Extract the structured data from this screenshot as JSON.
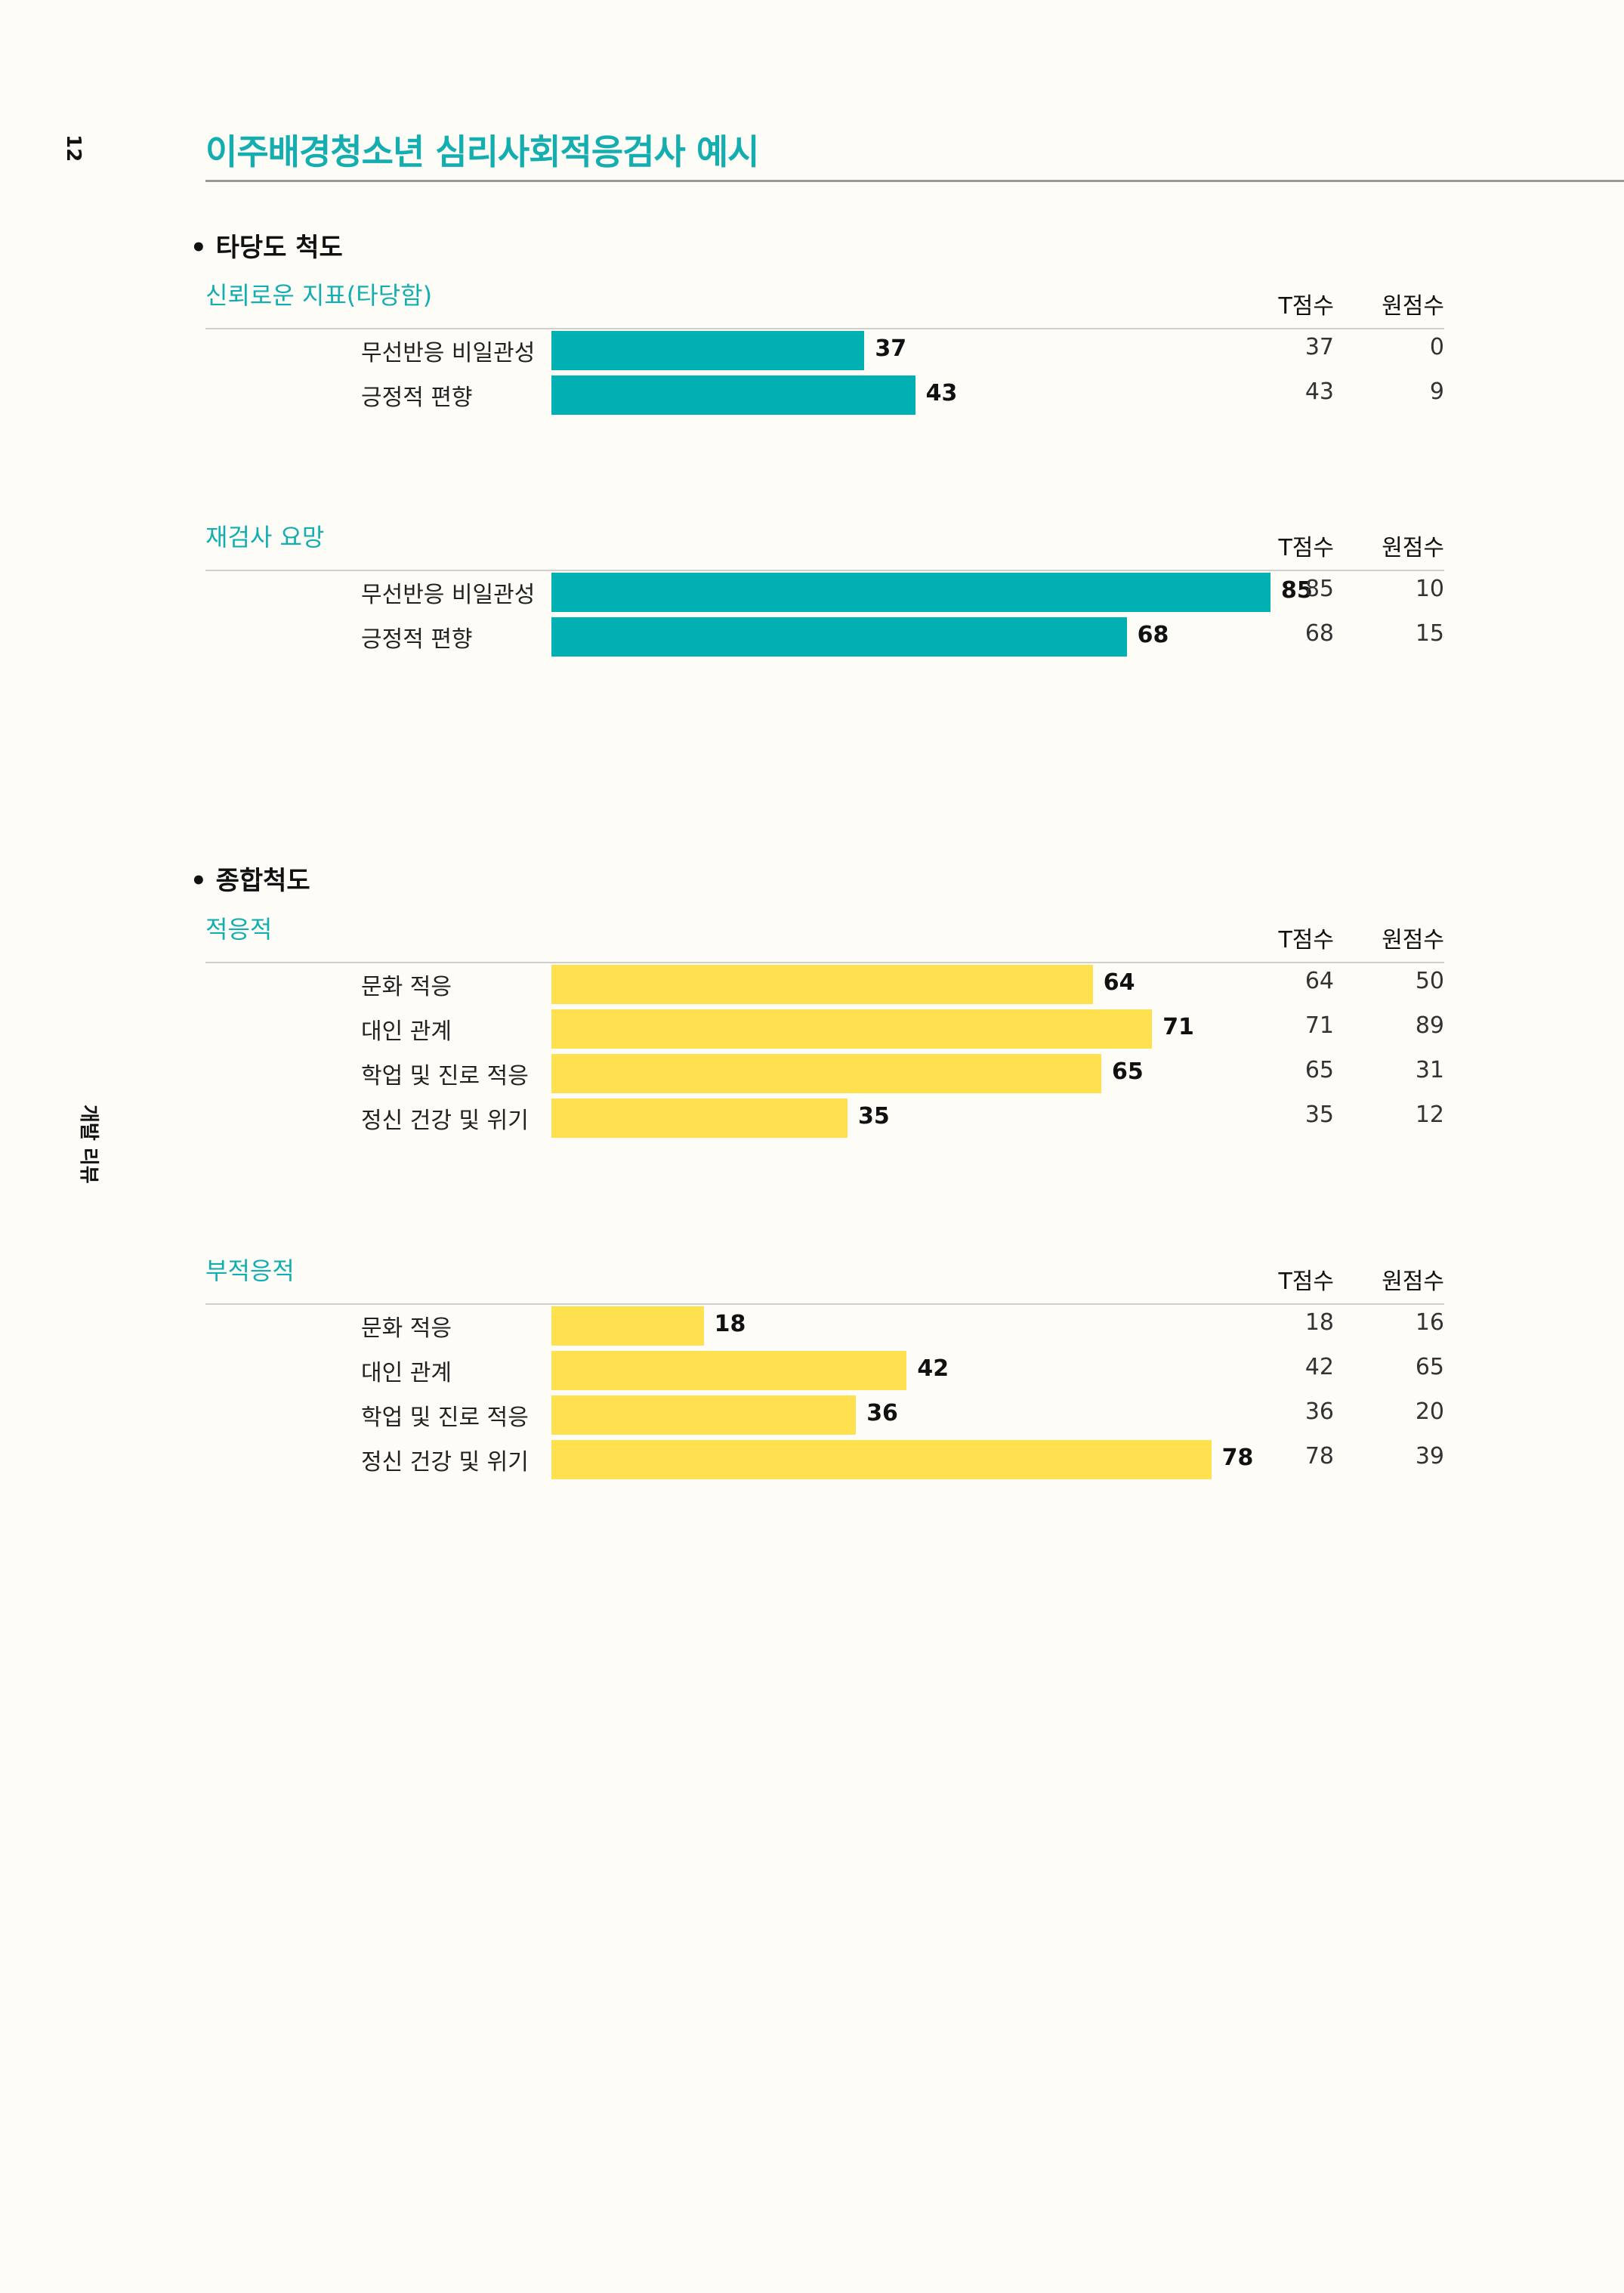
{
  "page_number": "12",
  "side_label": "개발 리뷰",
  "title": "이주배경청소년 심리사회적응검사 예시",
  "sections": [
    {
      "heading": "• 타당도 척도"
    },
    {
      "heading": "• 종합척도"
    }
  ],
  "chart_data": [
    {
      "type": "bar",
      "title": "신뢰로운 지표(타당함)",
      "columns": [
        "T점수",
        "원점수"
      ],
      "categories": [
        "무선반응 비일관성",
        "긍정적 편향"
      ],
      "t_scores": [
        37,
        43
      ],
      "raw_scores": [
        0,
        9
      ],
      "xlim": [
        0,
        100
      ],
      "color": "#00b0b3"
    },
    {
      "type": "bar",
      "title": "재검사 요망",
      "columns": [
        "T점수",
        "원점수"
      ],
      "categories": [
        "무선반응 비일관성",
        "긍정적 편향"
      ],
      "t_scores": [
        85,
        68
      ],
      "raw_scores": [
        10,
        15
      ],
      "xlim": [
        0,
        100
      ],
      "color": "#00b0b3"
    },
    {
      "type": "bar",
      "title": "적응적",
      "columns": [
        "T점수",
        "원점수"
      ],
      "categories": [
        "문화 적응",
        "대인 관계",
        "학업 및 진로 적응",
        "정신 건강 및 위기"
      ],
      "t_scores": [
        64,
        71,
        65,
        35
      ],
      "raw_scores": [
        50,
        89,
        31,
        12
      ],
      "xlim": [
        0,
        100
      ],
      "color": "#ffe14f"
    },
    {
      "type": "bar",
      "title": "부적응적",
      "columns": [
        "T점수",
        "원점수"
      ],
      "categories": [
        "문화 적응",
        "대인 관계",
        "학업 및 진로 적응",
        "정신 건강 및 위기"
      ],
      "t_scores": [
        18,
        42,
        36,
        78
      ],
      "raw_scores": [
        16,
        65,
        20,
        39
      ],
      "xlim": [
        0,
        100
      ],
      "color": "#ffe14f"
    }
  ]
}
